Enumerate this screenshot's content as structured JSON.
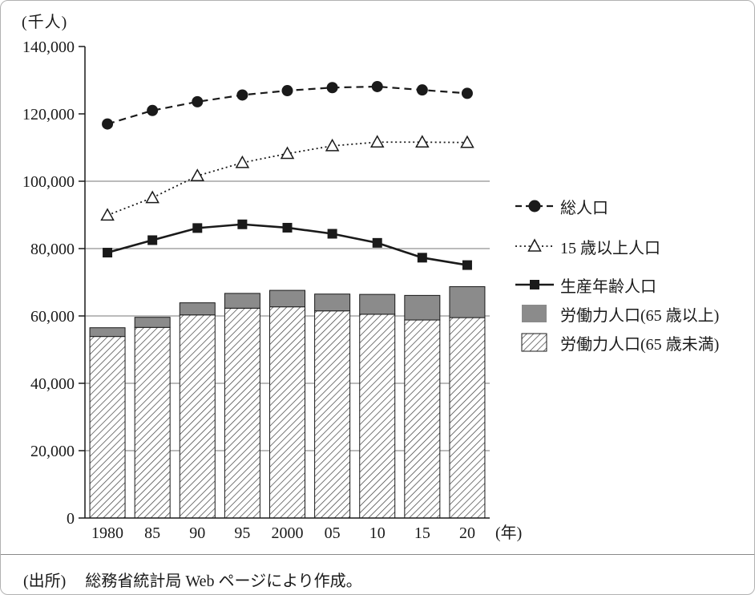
{
  "figure": {
    "y_unit_label": "(千人)",
    "x_unit_label": "(年)"
  },
  "source": {
    "prefix": "(出所)",
    "text": "総務省統計局 Web ページにより作成。"
  },
  "colors": {
    "ink": "#1a1a1a",
    "bar_gray": "#8b8b8b",
    "hatch_line": "#3a3a3a",
    "grid_line": "#777777",
    "figure_border": "#b2b2b2"
  },
  "chart_data": {
    "type": "composite",
    "subtype": "stacked-bar-with-lines",
    "title": "",
    "y_unit": "(千人)",
    "x_unit": "(年)",
    "categories": [
      "1980",
      "85",
      "90",
      "95",
      "2000",
      "05",
      "10",
      "15",
      "20"
    ],
    "ylim": [
      0,
      140000
    ],
    "yticks": [
      {
        "value": 0,
        "label": "0"
      },
      {
        "value": 20000,
        "label": "20,000"
      },
      {
        "value": 40000,
        "label": "40,000"
      },
      {
        "value": 60000,
        "label": "60,000"
      },
      {
        "value": 80000,
        "label": "80,000"
      },
      {
        "value": 100000,
        "label": "100,000"
      },
      {
        "value": 120000,
        "label": "120,000"
      },
      {
        "value": 140000,
        "label": "140,000"
      }
    ],
    "grid_values": [
      20000,
      40000,
      60000,
      80000,
      100000
    ],
    "legend_position": "right",
    "series": [
      {
        "key": "total_population",
        "name": "総人口",
        "type": "line",
        "line_style": "dashed",
        "marker": "filled-circle",
        "values": [
          117000,
          121000,
          123600,
          125600,
          126900,
          127800,
          128100,
          127100,
          126100
        ]
      },
      {
        "key": "pop_15_and_over",
        "name": "15 歳以上人口",
        "type": "line",
        "line_style": "dotted",
        "marker": "open-triangle",
        "values": [
          89900,
          95100,
          101600,
          105500,
          108200,
          110500,
          111600,
          111600,
          111500
        ]
      },
      {
        "key": "working_age_population",
        "name": "生産年齢人口",
        "type": "line",
        "line_style": "solid",
        "marker": "filled-square",
        "values": [
          78800,
          82500,
          86100,
          87200,
          86200,
          84400,
          81700,
          77300,
          75100
        ]
      },
      {
        "key": "labor_force_65_plus",
        "name": "労働力人口(65 歳以上)",
        "type": "bar",
        "bar_style": "solid-gray",
        "stack_order": "top",
        "values": [
          2600,
          3000,
          3600,
          4400,
          4900,
          5000,
          5900,
          7300,
          9200
        ]
      },
      {
        "key": "labor_force_under_65",
        "name": "労働力人口(65 歳未満)",
        "type": "bar",
        "bar_style": "hatched",
        "stack_order": "bottom",
        "values": [
          53900,
          56600,
          60300,
          62300,
          62700,
          61500,
          60500,
          58800,
          59500
        ]
      }
    ]
  }
}
